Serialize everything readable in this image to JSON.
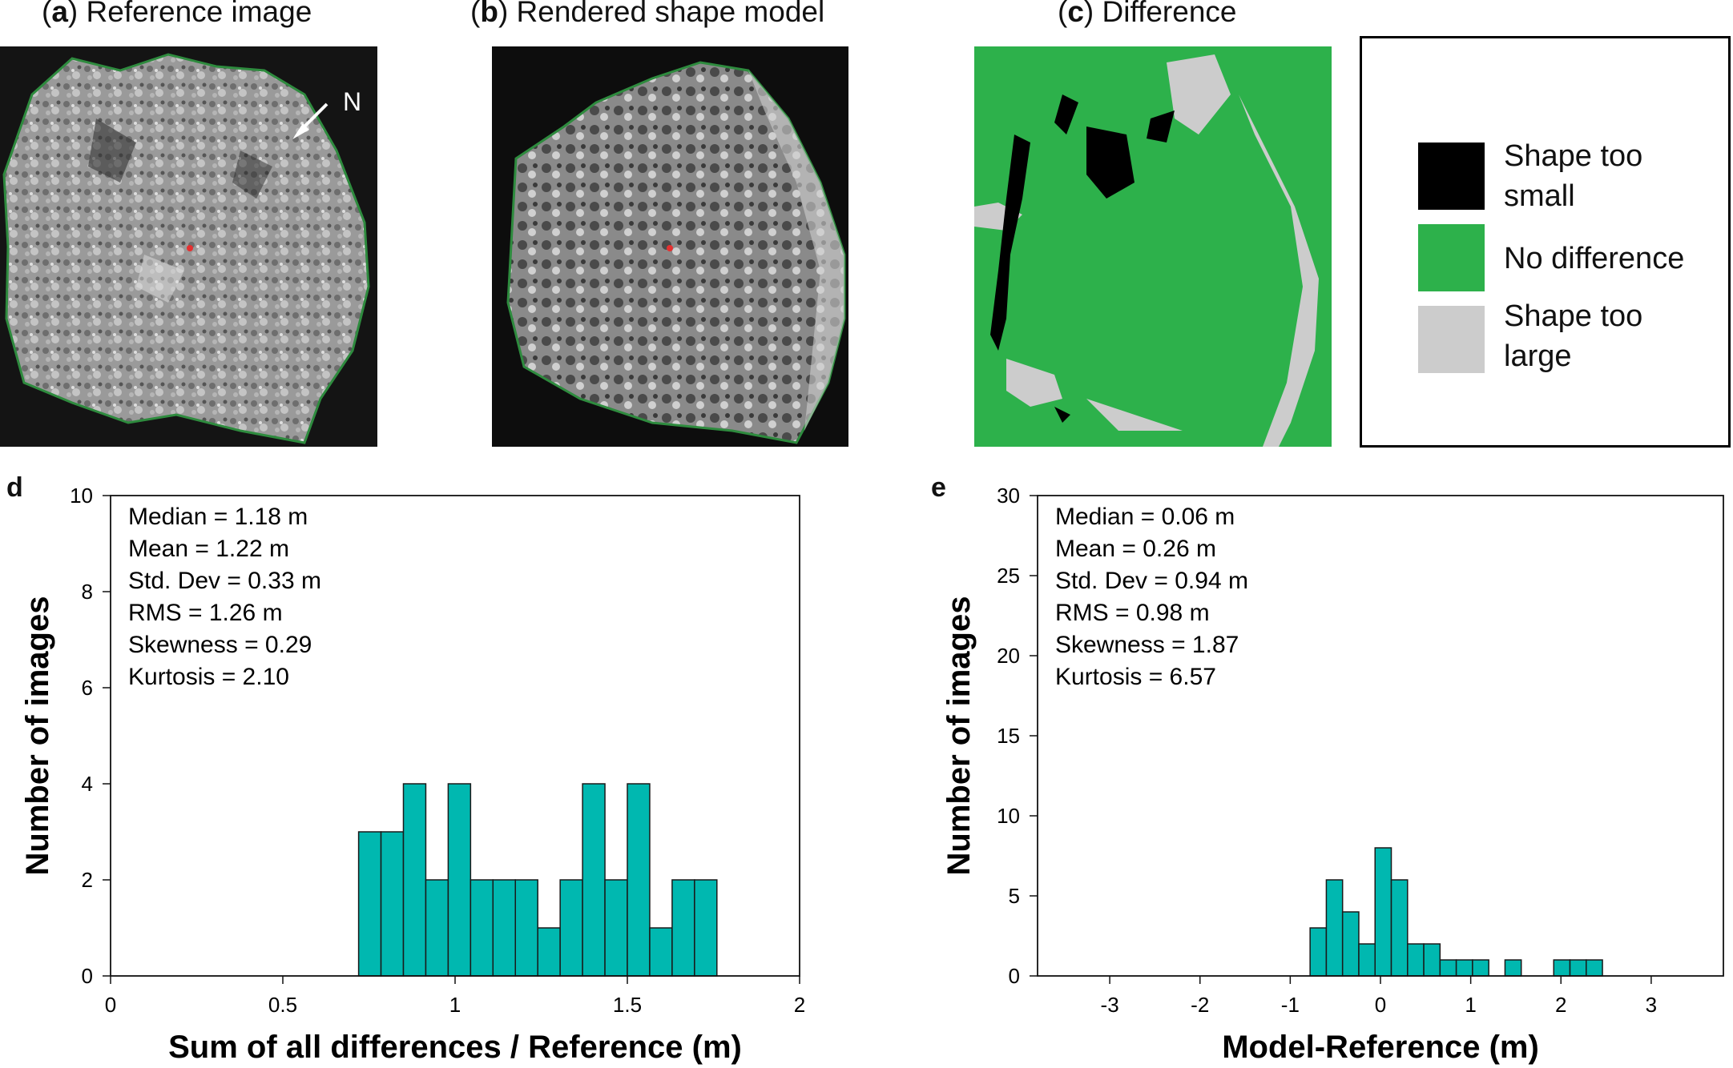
{
  "panels": {
    "a": {
      "letter": "a",
      "title": "Reference image",
      "north": "N"
    },
    "b": {
      "letter": "b",
      "title": "Rendered shape model"
    },
    "c": {
      "letter": "c",
      "title": "Difference"
    }
  },
  "legend": {
    "items": [
      {
        "label": "Shape too\nsmall",
        "color": "#000000"
      },
      {
        "label": "No difference",
        "color": "#2db14b"
      },
      {
        "label": "Shape too\nlarge",
        "color": "#cccccc"
      }
    ]
  },
  "colors": {
    "bar": "#00b8b0",
    "bar_edge": "#1a1a1a",
    "outline": "#2e8b3e",
    "green": "#2db14b",
    "gray": "#cccccc"
  },
  "chart_data": [
    {
      "panel": "d",
      "type": "bar",
      "xlabel": "Sum of all differences / Reference (m)",
      "ylabel": "Number of images",
      "xlim": [
        0,
        2
      ],
      "ylim": [
        0,
        10
      ],
      "xticks": [
        "0",
        "0.5",
        "1",
        "1.5",
        "2"
      ],
      "yticks": [
        "0",
        "2",
        "4",
        "6",
        "8",
        "10"
      ],
      "bin_width": 0.065,
      "bins": [
        {
          "x": 0.72,
          "value": 3
        },
        {
          "x": 0.785,
          "value": 3
        },
        {
          "x": 0.85,
          "value": 4
        },
        {
          "x": 0.915,
          "value": 2
        },
        {
          "x": 0.98,
          "value": 4
        },
        {
          "x": 1.045,
          "value": 2
        },
        {
          "x": 1.11,
          "value": 2
        },
        {
          "x": 1.175,
          "value": 2
        },
        {
          "x": 1.24,
          "value": 1
        },
        {
          "x": 1.305,
          "value": 2
        },
        {
          "x": 1.37,
          "value": 4
        },
        {
          "x": 1.435,
          "value": 2
        },
        {
          "x": 1.5,
          "value": 4
        },
        {
          "x": 1.565,
          "value": 1
        },
        {
          "x": 1.63,
          "value": 2
        },
        {
          "x": 1.695,
          "value": 2
        }
      ],
      "stats": [
        "Median = 1.18 m",
        "Mean = 1.22 m",
        "Std. Dev = 0.33 m",
        "RMS = 1.26 m",
        "Skewness = 0.29",
        "Kurtosis = 2.10"
      ]
    },
    {
      "panel": "e",
      "type": "bar",
      "xlabel": "Model-Reference (m)",
      "ylabel": "Number of images",
      "xlim": [
        -3.8,
        3.8
      ],
      "ylim": [
        0,
        30
      ],
      "xticks": [
        "-3",
        "-2",
        "-1",
        "0",
        "1",
        "2",
        "3"
      ],
      "yticks": [
        "0",
        "5",
        "10",
        "15",
        "20",
        "25",
        "30"
      ],
      "bin_width": 0.18,
      "bins": [
        {
          "x": -0.78,
          "value": 3
        },
        {
          "x": -0.6,
          "value": 6
        },
        {
          "x": -0.42,
          "value": 4
        },
        {
          "x": -0.24,
          "value": 2
        },
        {
          "x": -0.06,
          "value": 8
        },
        {
          "x": 0.12,
          "value": 6
        },
        {
          "x": 0.3,
          "value": 2
        },
        {
          "x": 0.48,
          "value": 2
        },
        {
          "x": 0.66,
          "value": 1
        },
        {
          "x": 0.84,
          "value": 1
        },
        {
          "x": 1.02,
          "value": 1
        },
        {
          "x": 1.38,
          "value": 1
        },
        {
          "x": 1.92,
          "value": 1
        },
        {
          "x": 2.1,
          "value": 1
        },
        {
          "x": 2.28,
          "value": 1
        }
      ],
      "stats": [
        "Median = 0.06 m",
        "Mean = 0.26 m",
        "Std. Dev = 0.94 m",
        "RMS = 0.98 m",
        "Skewness = 1.87",
        "Kurtosis = 6.57"
      ]
    }
  ]
}
